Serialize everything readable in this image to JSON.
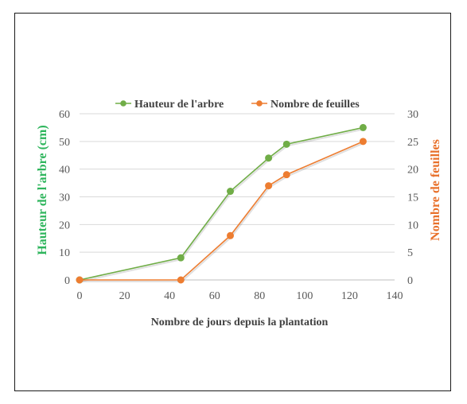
{
  "chart_data": {
    "type": "line",
    "title": "",
    "xlabel": "Nombre de jours depuis la plantation",
    "ylabel_left": "Hauteur de l'arbre (cm)",
    "ylabel_right": "Nombre de feuilles",
    "xlim": [
      0,
      140
    ],
    "xticks": [
      0,
      20,
      40,
      60,
      80,
      100,
      120,
      140
    ],
    "ylim_left": [
      0,
      60
    ],
    "yticks_left": [
      0,
      10,
      20,
      30,
      40,
      50,
      60
    ],
    "ylim_right": [
      0,
      30
    ],
    "yticks_right": [
      0,
      5,
      10,
      15,
      20,
      25,
      30
    ],
    "grid": true,
    "legend_position": "top",
    "series": [
      {
        "name": "Hauteur de l'arbre",
        "axis": "left",
        "color": "#70ad47",
        "x": [
          0,
          45,
          67,
          84,
          92,
          126
        ],
        "y": [
          0,
          8,
          32,
          44,
          49,
          55
        ]
      },
      {
        "name": "Nombre de feuilles",
        "axis": "right",
        "color": "#ed7d31",
        "x": [
          0,
          45,
          67,
          84,
          92,
          126
        ],
        "y": [
          0,
          0,
          8,
          17,
          19,
          25
        ]
      }
    ],
    "colors": {
      "left_label": "#2eb55c",
      "right_label": "#e8702a",
      "grid": "#d9d9d9",
      "axis": "#bfbfbf"
    }
  }
}
